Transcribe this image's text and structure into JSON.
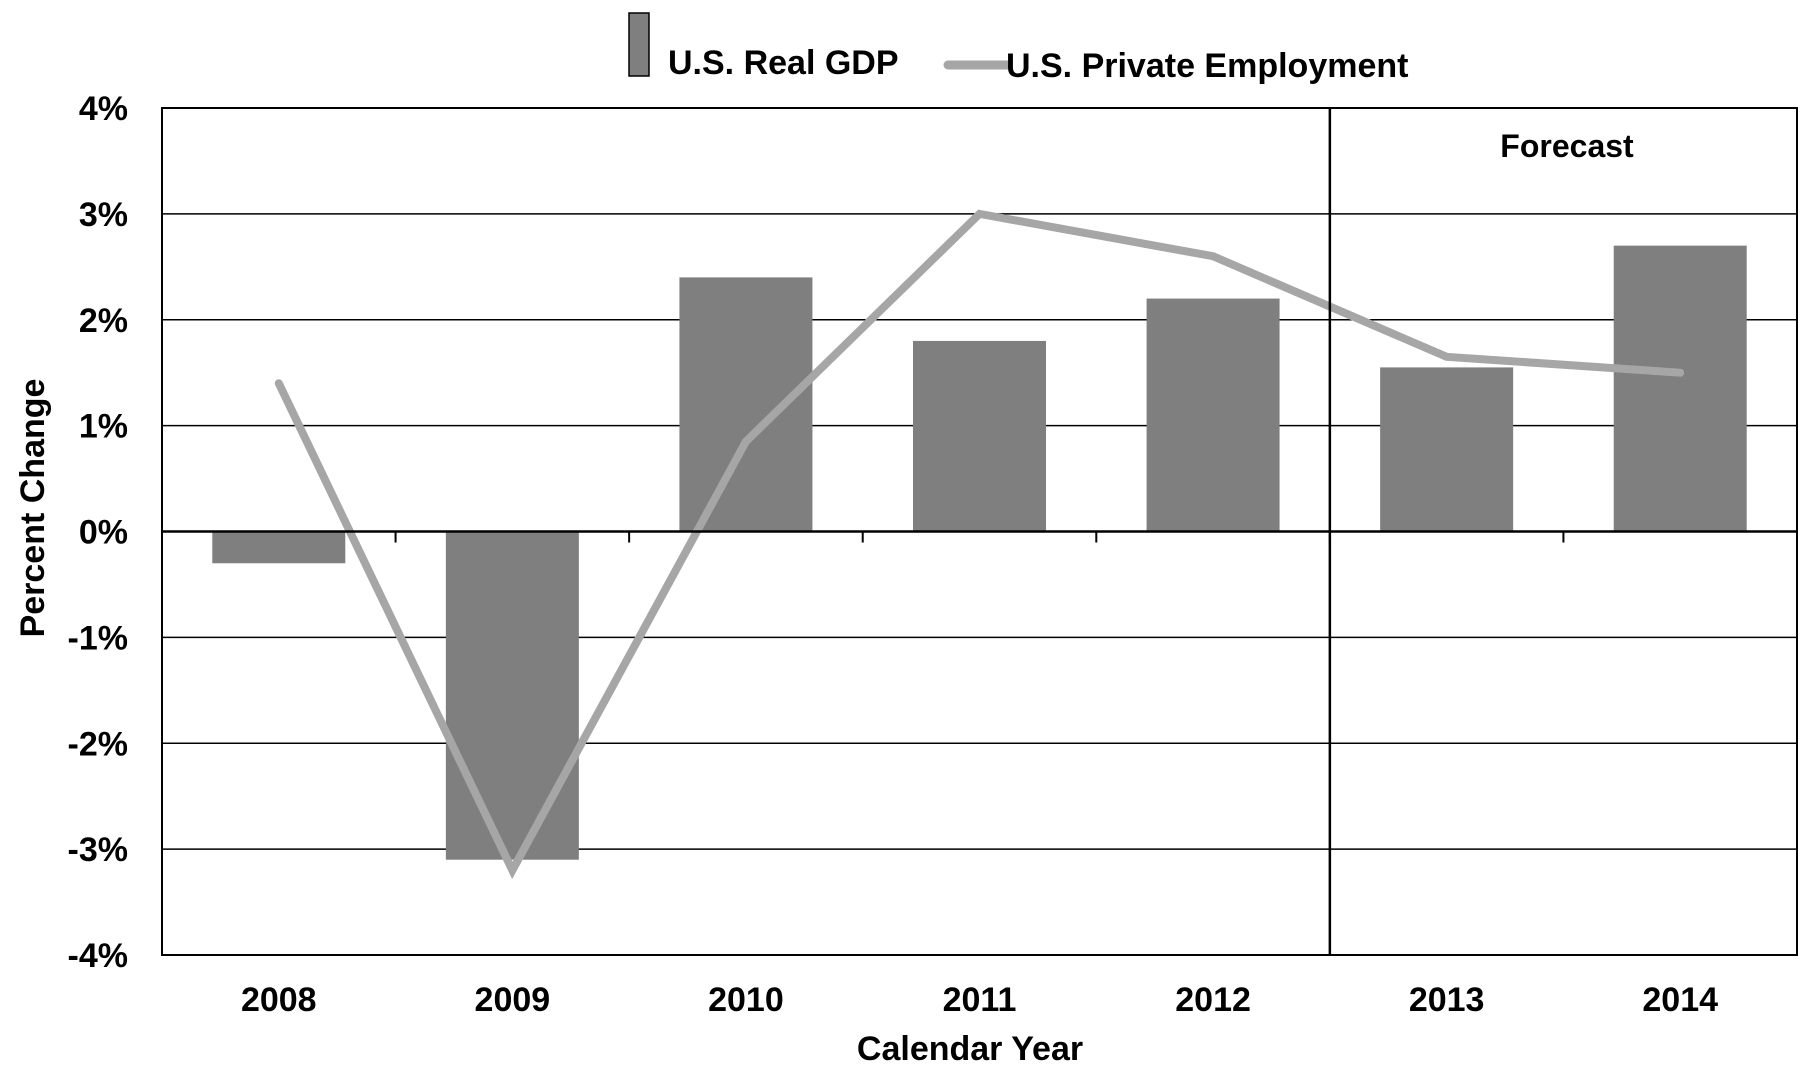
{
  "chart_data": {
    "type": "bar",
    "categories": [
      "2008",
      "2009",
      "2010",
      "2011",
      "2012",
      "2013",
      "2014"
    ],
    "series": [
      {
        "name": "U.S. Real GDP",
        "kind": "bar",
        "color": "#7f7f7f",
        "values": [
          -0.3,
          -3.1,
          2.4,
          1.8,
          2.2,
          1.55,
          2.7
        ]
      },
      {
        "name": "U.S. Private Employment",
        "kind": "line",
        "color": "#a6a6a6",
        "values": [
          1.4,
          -3.2,
          0.85,
          3.0,
          2.6,
          1.65,
          1.5
        ]
      }
    ],
    "xlabel": "Calendar Year",
    "ylabel": "Percent Change",
    "ylim": [
      -4,
      4
    ],
    "yticks": [
      "-4%",
      "-3%",
      "-2%",
      "-1%",
      "0%",
      "1%",
      "2%",
      "3%",
      "4%"
    ],
    "grid": true,
    "legend": "top-center",
    "annotations": [
      {
        "text": "Forecast",
        "region_start": "2013"
      }
    ]
  }
}
